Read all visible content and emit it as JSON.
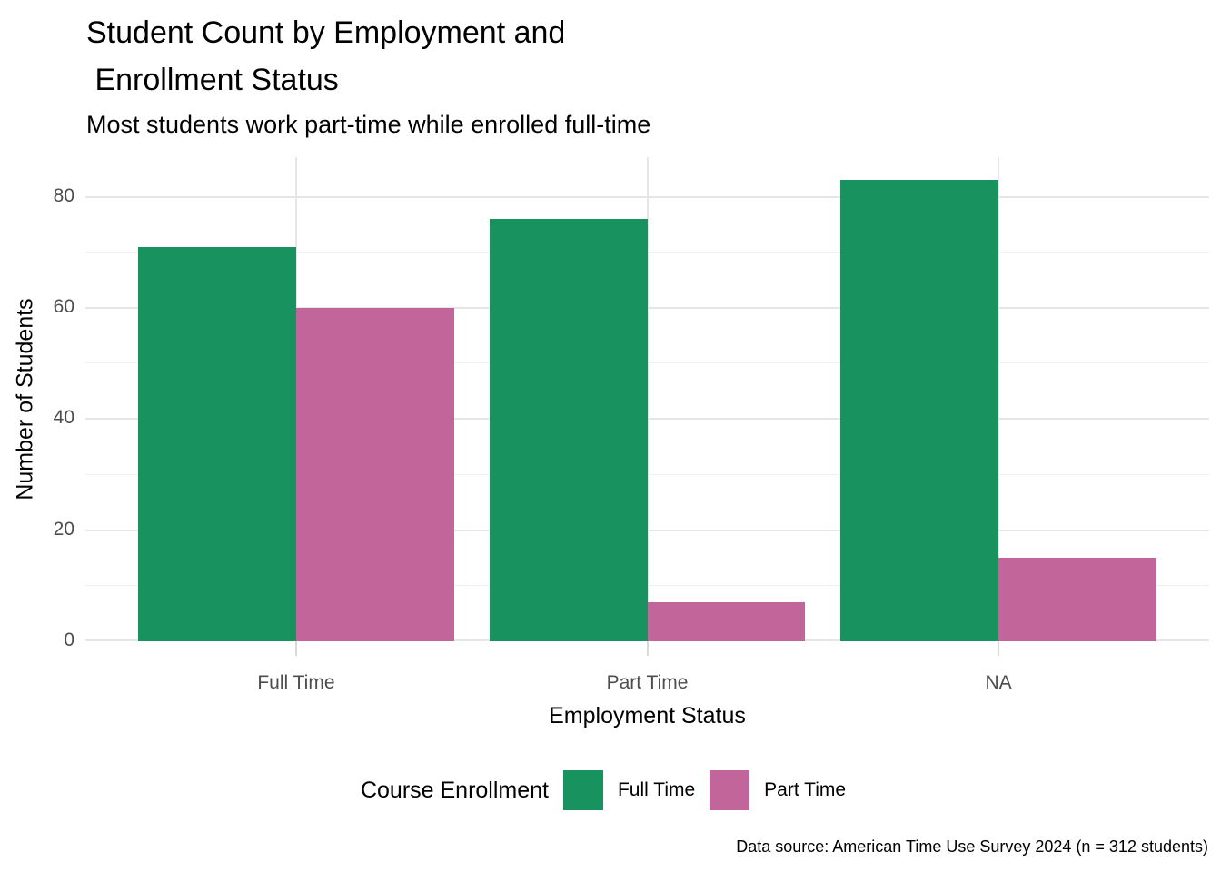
{
  "title": "Student Count by Employment and\n Enrollment Status",
  "subtitle": "Most students work part-time while enrolled full-time",
  "caption": "Data source: American Time Use Survey 2024 (n = 312 students)",
  "colors": {
    "full_time_enrollment": "#18925F",
    "part_time_enrollment": "#C1659B",
    "grid_major": "#e6e6e6",
    "grid_minor": "#f0f0f0",
    "axis_text": "#4d4d4d"
  },
  "legend": {
    "title": "Course Enrollment",
    "items": [
      {
        "label": "Full Time",
        "color": "#18925F"
      },
      {
        "label": "Part Time",
        "color": "#C1659B"
      }
    ]
  },
  "chart_data": {
    "type": "bar",
    "bar_mode": "grouped",
    "title": "Student Count by Employment and\n Enrollment Status",
    "subtitle": "Most students work part-time while enrolled full-time",
    "caption": "Data source: American Time Use Survey 2024 (n = 312 students)",
    "xlabel": "Employment Status",
    "ylabel": "Number of Students",
    "categories": [
      "Full Time",
      "Part Time",
      "NA"
    ],
    "series": [
      {
        "name": "Full Time",
        "color": "#18925F",
        "values": [
          71,
          76,
          83
        ]
      },
      {
        "name": "Part Time",
        "color": "#C1659B",
        "values": [
          60,
          7,
          15
        ]
      }
    ],
    "total_n": 312,
    "ylim": [
      0,
      87.15
    ],
    "yticks": [
      0,
      20,
      40,
      60,
      80
    ],
    "yticks_minor": [
      10,
      30,
      50,
      70
    ],
    "grid": true,
    "legend_title": "Course Enrollment",
    "legend_position": "bottom"
  }
}
